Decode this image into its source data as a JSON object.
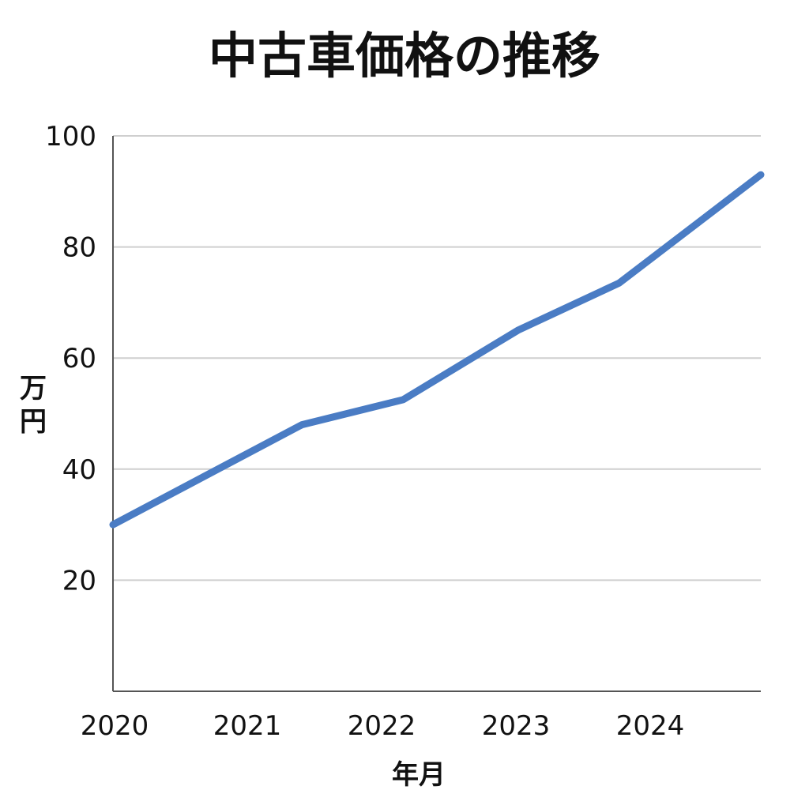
{
  "chart_data": {
    "type": "line",
    "title": "中古車価格の推移",
    "xlabel": "年月",
    "ylabel": "万円",
    "x_ticks": [
      "2020",
      "2021",
      "2022",
      "2023",
      "2024"
    ],
    "x_range": [
      2020,
      2024.8
    ],
    "ylim": [
      0,
      100
    ],
    "y_ticks": [
      20,
      40,
      60,
      80,
      100
    ],
    "y_tick_labels": [
      "20",
      "40",
      "60",
      "80",
      "100"
    ],
    "grid": true,
    "series": [
      {
        "color": "#4a7cc4",
        "x": [
          2020,
          2021.4,
          2022.15,
          2023.0,
          2023.75,
          2024.8
        ],
        "y": [
          30,
          48,
          52.5,
          65,
          73.5,
          93
        ]
      }
    ]
  }
}
